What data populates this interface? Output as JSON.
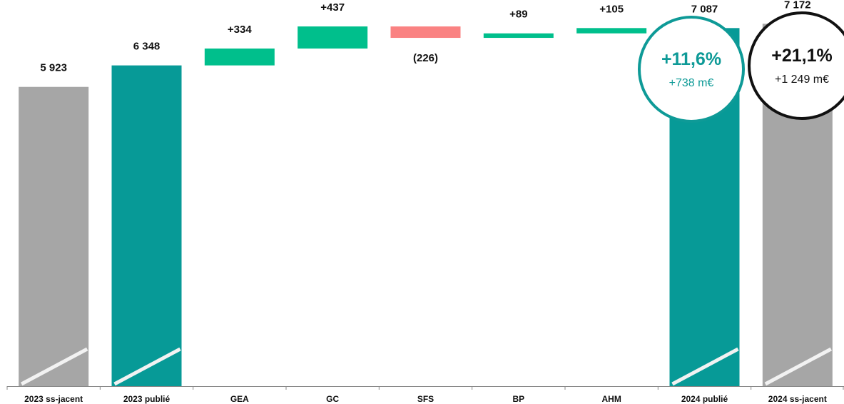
{
  "chart_data": {
    "type": "bar",
    "subtype": "waterfall",
    "categories": [
      "2023 ss-jacent",
      "2023 publié",
      "GEA",
      "GC",
      "SFS",
      "BP",
      "AHM",
      "2024 publié",
      "2024 ss-jacent"
    ],
    "values": [
      5923,
      6348,
      334,
      437,
      -226,
      89,
      105,
      7087,
      7172
    ],
    "bar_kinds": [
      "total",
      "total",
      "delta",
      "delta",
      "delta",
      "delta",
      "delta",
      "total",
      "total"
    ],
    "value_labels": [
      "5 923",
      "6 348",
      "+334",
      "+437",
      "(226)",
      "+89",
      "+105",
      "7 087",
      "7 172"
    ],
    "ylim": [
      0,
      7600
    ],
    "grid": false,
    "colors": {
      "gray_total": "#A6A6A6",
      "teal_total": "#079A97",
      "increase": "#00BF8C",
      "decrease": "#FA8282",
      "axis": "#888888"
    }
  },
  "badges": {
    "growth_published": {
      "pct": "+11,6%",
      "amount": "+738 m€",
      "color": "#0E9A97"
    },
    "growth_underlying": {
      "pct": "+21,1%",
      "amount": "+1 249 m€",
      "color": "#111111"
    }
  }
}
